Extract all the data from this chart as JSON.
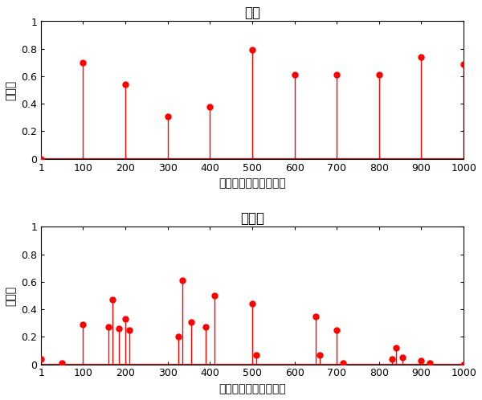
{
  "top_title": "真値",
  "bottom_title": "推定値",
  "xlabel": "参加者のインデックス",
  "ylabel": "違反率",
  "true_x": [
    1,
    100,
    200,
    300,
    400,
    500,
    600,
    700,
    800,
    900,
    1000
  ],
  "true_y": [
    0.0,
    0.7,
    0.54,
    0.31,
    0.38,
    0.79,
    0.61,
    0.61,
    0.61,
    0.74,
    0.69
  ],
  "est_x": [
    1,
    50,
    100,
    160,
    170,
    185,
    200,
    210,
    325,
    335,
    355,
    390,
    410,
    500,
    510,
    650,
    660,
    700,
    715,
    830,
    840,
    855,
    900,
    920,
    1000
  ],
  "est_y": [
    0.04,
    0.01,
    0.29,
    0.27,
    0.47,
    0.26,
    0.33,
    0.25,
    0.2,
    0.61,
    0.31,
    0.27,
    0.5,
    0.44,
    0.07,
    0.35,
    0.07,
    0.25,
    0.01,
    0.04,
    0.12,
    0.05,
    0.03,
    0.01,
    0.0
  ],
  "xlim": [
    1,
    1000
  ],
  "ylim": [
    0,
    1
  ],
  "xticks": [
    1,
    100,
    200,
    300,
    400,
    500,
    600,
    700,
    800,
    900,
    1000
  ],
  "yticks": [
    0,
    0.2,
    0.4,
    0.6,
    0.8,
    1.0
  ],
  "ytick_labels": [
    "0",
    "0.2",
    "0.4",
    "0.6",
    "0.8",
    "1"
  ],
  "marker_color": "#FF0000",
  "line_color": "#FF0000",
  "marker_size": 5,
  "line_width": 1.0,
  "background_color": "#FFFFFF",
  "title_fontsize": 12,
  "label_fontsize": 10,
  "tick_fontsize": 9,
  "fig_width": 6.0,
  "fig_height": 4.98,
  "dpi": 100
}
